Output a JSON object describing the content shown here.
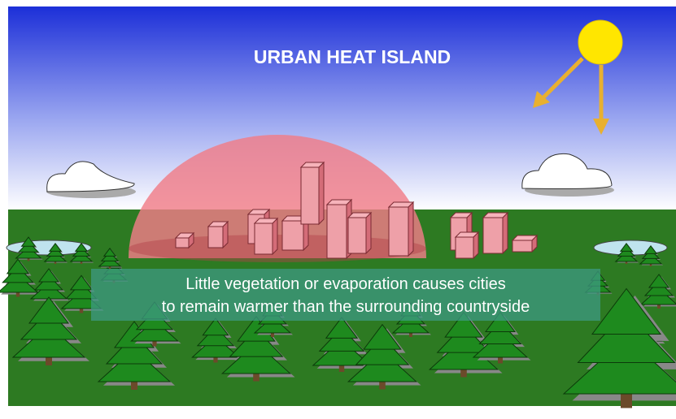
{
  "title": "URBAN HEAT ISLAND",
  "caption": [
    "Little vegetation or evaporation causes cities",
    "to remain warmer than the surrounding countryside"
  ]
}
